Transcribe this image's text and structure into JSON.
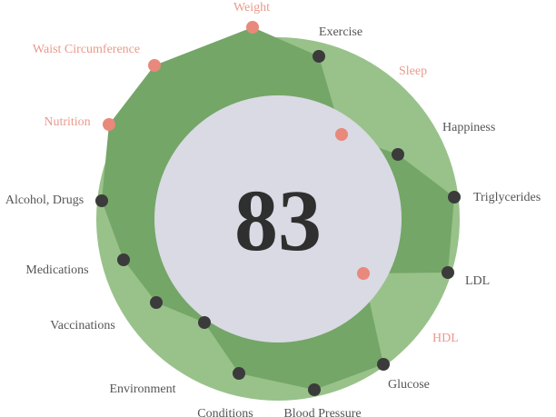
{
  "score": "83",
  "colors": {
    "ring": "#98c28a",
    "polygon_fill": "#74a667",
    "inner_circle": "#d9dae3",
    "outer_haze": "#dedee6",
    "dot_dark": "#3b3b3b",
    "dot_alert": "#e8897c",
    "label_dark": "#555555",
    "label_alert": "#ea9a8c",
    "score_text": "#2f2f2f"
  },
  "metrics": [
    {
      "label": "Weight",
      "status": "alert"
    },
    {
      "label": "Exercise",
      "status": "ok"
    },
    {
      "label": "Sleep",
      "status": "alert"
    },
    {
      "label": "Happiness",
      "status": "ok"
    },
    {
      "label": "Triglycerides",
      "status": "ok"
    },
    {
      "label": "LDL",
      "status": "ok"
    },
    {
      "label": "HDL",
      "status": "alert"
    },
    {
      "label": "Glucose",
      "status": "ok"
    },
    {
      "label": "Blood Pressure",
      "status": "ok"
    },
    {
      "label": "Conditions",
      "status": "ok"
    },
    {
      "label": "Environment",
      "status": "ok"
    },
    {
      "label": "Vaccinations",
      "status": "ok"
    },
    {
      "label": "Medications",
      "status": "ok"
    },
    {
      "label": "Alcohol, Drugs",
      "status": "ok"
    },
    {
      "label": "Nutrition",
      "status": "alert"
    },
    {
      "label": "Waist Circumference",
      "status": "alert"
    }
  ]
}
